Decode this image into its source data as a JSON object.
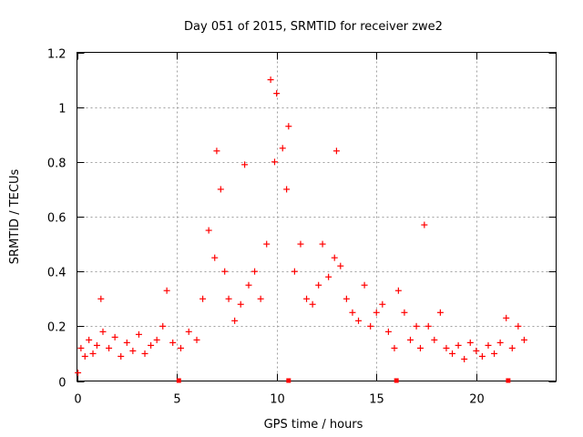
{
  "chart_data": {
    "type": "scatter",
    "title": "Day 051 of 2015, SRMTID for receiver zwe2",
    "xlabel": "GPS time / hours",
    "ylabel": "SRMTID / TECUs",
    "xlim": [
      0,
      24
    ],
    "ylim": [
      0,
      1.2
    ],
    "x_ticks": [
      0,
      5,
      10,
      15,
      20
    ],
    "x_tick_labels": [
      "0",
      "5",
      "10",
      "15",
      "20"
    ],
    "y_ticks": [
      0,
      0.2,
      0.4,
      0.6,
      0.8,
      1.0,
      1.2
    ],
    "y_tick_labels": [
      "0",
      "0.2",
      "0.4",
      "0.6",
      "0.8",
      "1",
      "1.2"
    ],
    "grid": true,
    "marker": "plus",
    "color": "#ff0000",
    "envelope_hint": "dense scatter; estimated typical level per hour with spikes",
    "series": [
      {
        "name": "SRMTID",
        "points": [
          [
            0.05,
            0.03
          ],
          [
            0.2,
            0.12
          ],
          [
            0.4,
            0.09
          ],
          [
            0.6,
            0.15
          ],
          [
            0.8,
            0.1
          ],
          [
            1.0,
            0.13
          ],
          [
            1.2,
            0.3
          ],
          [
            1.3,
            0.18
          ],
          [
            1.6,
            0.12
          ],
          [
            1.9,
            0.16
          ],
          [
            2.2,
            0.09
          ],
          [
            2.5,
            0.14
          ],
          [
            2.8,
            0.11
          ],
          [
            3.1,
            0.17
          ],
          [
            3.4,
            0.1
          ],
          [
            3.7,
            0.13
          ],
          [
            4.0,
            0.15
          ],
          [
            4.3,
            0.2
          ],
          [
            4.5,
            0.33
          ],
          [
            4.8,
            0.14
          ],
          [
            5.2,
            0.12
          ],
          [
            5.6,
            0.18
          ],
          [
            6.0,
            0.15
          ],
          [
            6.3,
            0.3
          ],
          [
            6.6,
            0.55
          ],
          [
            6.9,
            0.45
          ],
          [
            7.0,
            0.84
          ],
          [
            7.2,
            0.7
          ],
          [
            7.4,
            0.4
          ],
          [
            7.6,
            0.3
          ],
          [
            7.9,
            0.22
          ],
          [
            8.2,
            0.28
          ],
          [
            8.4,
            0.79
          ],
          [
            8.6,
            0.35
          ],
          [
            8.9,
            0.4
          ],
          [
            9.2,
            0.3
          ],
          [
            9.5,
            0.5
          ],
          [
            9.7,
            1.1
          ],
          [
            9.9,
            0.8
          ],
          [
            10.0,
            1.05
          ],
          [
            10.3,
            0.85
          ],
          [
            10.5,
            0.7
          ],
          [
            10.6,
            0.93
          ],
          [
            10.9,
            0.4
          ],
          [
            11.2,
            0.5
          ],
          [
            11.5,
            0.3
          ],
          [
            11.8,
            0.28
          ],
          [
            12.1,
            0.35
          ],
          [
            12.3,
            0.5
          ],
          [
            12.6,
            0.38
          ],
          [
            12.9,
            0.45
          ],
          [
            13.0,
            0.84
          ],
          [
            13.2,
            0.42
          ],
          [
            13.5,
            0.3
          ],
          [
            13.8,
            0.25
          ],
          [
            14.1,
            0.22
          ],
          [
            14.4,
            0.35
          ],
          [
            14.7,
            0.2
          ],
          [
            15.0,
            0.25
          ],
          [
            15.3,
            0.28
          ],
          [
            15.6,
            0.18
          ],
          [
            15.9,
            0.12
          ],
          [
            16.1,
            0.33
          ],
          [
            16.4,
            0.25
          ],
          [
            16.7,
            0.15
          ],
          [
            17.0,
            0.2
          ],
          [
            17.2,
            0.12
          ],
          [
            17.4,
            0.57
          ],
          [
            17.6,
            0.2
          ],
          [
            17.9,
            0.15
          ],
          [
            18.2,
            0.25
          ],
          [
            18.5,
            0.12
          ],
          [
            18.8,
            0.1
          ],
          [
            19.1,
            0.13
          ],
          [
            19.4,
            0.08
          ],
          [
            19.7,
            0.14
          ],
          [
            20.0,
            0.11
          ],
          [
            20.3,
            0.09
          ],
          [
            20.6,
            0.13
          ],
          [
            20.9,
            0.1
          ],
          [
            21.2,
            0.14
          ],
          [
            21.5,
            0.23
          ],
          [
            21.8,
            0.12
          ],
          [
            22.1,
            0.2
          ],
          [
            22.4,
            0.15
          ]
        ]
      }
    ],
    "baseline_markers": [
      5.1,
      10.6,
      16.0,
      21.6
    ]
  }
}
